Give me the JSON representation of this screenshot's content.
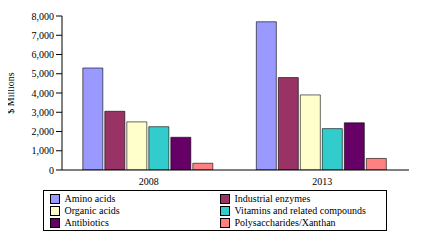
{
  "chart_data": {
    "type": "bar",
    "y_label": "$ Millions",
    "categories": [
      "2008",
      "2013"
    ],
    "series": [
      {
        "name": "Amino acids",
        "color": "#9999ff",
        "values": [
          5300,
          7700
        ]
      },
      {
        "name": "Industrial enzymes",
        "color": "#993366",
        "values": [
          3050,
          4800
        ]
      },
      {
        "name": "Organic acids",
        "color": "#ffffcc",
        "values": [
          2500,
          3900
        ]
      },
      {
        "name": "Vitamins and related compounds",
        "color": "#33cccc",
        "values": [
          2250,
          2150
        ]
      },
      {
        "name": "Antibiotics",
        "color": "#660066",
        "values": [
          1700,
          2450
        ]
      },
      {
        "name": "Polysaccharides/Xanthan",
        "color": "#ff8080",
        "values": [
          350,
          600
        ]
      }
    ],
    "ylim": [
      0,
      8000
    ],
    "yticks": [
      0,
      {
        "value": 1000,
        "label": "1,000"
      },
      {
        "value": 2000,
        "label": "2,000"
      },
      {
        "value": 3000,
        "label": "3,000"
      },
      {
        "value": 4000,
        "label": "4,000"
      },
      {
        "value": 5000,
        "label": "5,000"
      },
      {
        "value": 6000,
        "label": "6,000"
      },
      {
        "value": 7000,
        "label": "7,000"
      },
      {
        "value": 8000,
        "label": "8,000"
      }
    ],
    "grid": false,
    "legend": "bottom"
  }
}
